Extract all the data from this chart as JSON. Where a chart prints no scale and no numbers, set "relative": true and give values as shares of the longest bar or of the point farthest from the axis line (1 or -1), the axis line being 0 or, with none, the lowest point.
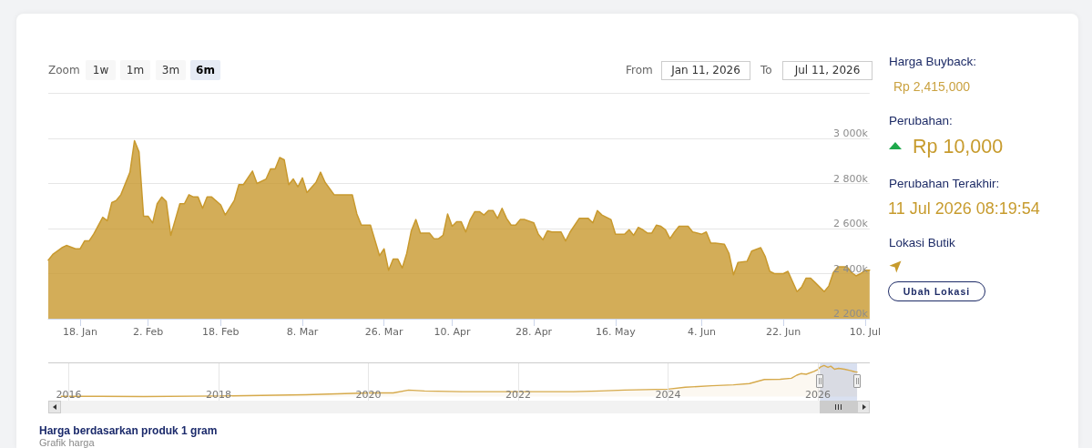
{
  "chart_data": [
    {
      "type": "area",
      "title": "Harga berdasarkan produk 1 gram",
      "subtitle": "Grafik harga",
      "color": "#c8992e",
      "x": [
        "2026-01-11",
        "2026-01-12",
        "2026-01-14",
        "2026-01-15",
        "2026-01-17",
        "2026-01-18",
        "2026-01-19",
        "2026-01-20",
        "2026-01-21",
        "2026-01-23",
        "2026-01-24",
        "2026-01-25",
        "2026-01-26",
        "2026-01-27",
        "2026-01-29",
        "2026-01-30",
        "2026-01-31",
        "2026-02-01",
        "2026-02-02",
        "2026-02-03",
        "2026-02-04",
        "2026-02-05",
        "2026-02-06",
        "2026-02-07",
        "2026-02-08",
        "2026-02-09",
        "2026-02-10",
        "2026-02-11",
        "2026-02-12",
        "2026-02-13",
        "2026-02-14",
        "2026-02-15",
        "2026-02-16",
        "2026-02-18",
        "2026-02-19",
        "2026-02-21",
        "2026-02-22",
        "2026-02-23",
        "2026-02-25",
        "2026-02-26",
        "2026-02-28",
        "2026-03-01",
        "2026-03-02",
        "2026-03-03",
        "2026-03-04",
        "2026-03-05",
        "2026-03-06",
        "2026-03-07",
        "2026-03-08",
        "2026-03-09",
        "2026-03-11",
        "2026-03-12",
        "2026-03-13",
        "2026-03-15",
        "2026-03-19",
        "2026-03-20",
        "2026-03-21",
        "2026-03-23",
        "2026-03-25",
        "2026-03-26",
        "2026-03-27",
        "2026-03-28",
        "2026-03-29",
        "2026-03-30",
        "2026-03-31",
        "2026-04-01",
        "2026-04-02",
        "2026-04-03",
        "2026-04-05",
        "2026-04-06",
        "2026-04-07",
        "2026-04-08",
        "2026-04-09",
        "2026-04-10",
        "2026-04-11",
        "2026-04-12",
        "2026-04-13",
        "2026-04-14",
        "2026-04-15",
        "2026-04-16",
        "2026-04-17",
        "2026-04-18",
        "2026-04-19",
        "2026-04-20",
        "2026-04-21",
        "2026-04-22",
        "2026-04-23",
        "2026-04-24",
        "2026-04-25",
        "2026-04-26",
        "2026-04-28",
        "2026-04-29",
        "2026-04-30",
        "2026-05-01",
        "2026-05-02",
        "2026-05-04",
        "2026-05-05",
        "2026-05-06",
        "2026-05-08",
        "2026-05-10",
        "2026-05-11",
        "2026-05-12",
        "2026-05-13",
        "2026-05-15",
        "2026-05-16",
        "2026-05-18",
        "2026-05-19",
        "2026-05-20",
        "2026-05-21",
        "2026-05-22",
        "2026-05-23",
        "2026-05-24",
        "2026-05-25",
        "2026-05-26",
        "2026-05-27",
        "2026-05-28",
        "2026-05-29",
        "2026-05-30",
        "2026-06-01",
        "2026-06-02",
        "2026-06-04",
        "2026-06-05",
        "2026-06-06",
        "2026-06-07",
        "2026-06-09",
        "2026-06-10",
        "2026-06-11",
        "2026-06-12",
        "2026-06-14",
        "2026-06-15",
        "2026-06-17",
        "2026-06-18",
        "2026-06-19",
        "2026-06-20",
        "2026-06-22",
        "2026-06-23",
        "2026-06-25",
        "2026-06-26",
        "2026-06-27",
        "2026-06-28",
        "2026-06-29",
        "2026-07-01",
        "2026-07-02",
        "2026-07-03",
        "2026-07-04",
        "2026-07-06",
        "2026-07-07",
        "2026-07-08",
        "2026-07-09",
        "2026-07-10",
        "2026-07-11"
      ],
      "values": [
        2460000,
        2485000,
        2515000,
        2525000,
        2510000,
        2510000,
        2545000,
        2545000,
        2575000,
        2650000,
        2635000,
        2715000,
        2725000,
        2750000,
        2850000,
        2990000,
        2940000,
        2655000,
        2655000,
        2625000,
        2710000,
        2740000,
        2720000,
        2570000,
        2640000,
        2710000,
        2710000,
        2750000,
        2740000,
        2740000,
        2690000,
        2740000,
        2740000,
        2705000,
        2660000,
        2725000,
        2795000,
        2795000,
        2855000,
        2800000,
        2820000,
        2865000,
        2865000,
        2915000,
        2905000,
        2795000,
        2820000,
        2785000,
        2825000,
        2760000,
        2805000,
        2850000,
        2805000,
        2750000,
        2750000,
        2665000,
        2615000,
        2615000,
        2480000,
        2510000,
        2415000,
        2465000,
        2465000,
        2425000,
        2490000,
        2590000,
        2640000,
        2580000,
        2580000,
        2555000,
        2555000,
        2570000,
        2665000,
        2610000,
        2630000,
        2630000,
        2585000,
        2640000,
        2675000,
        2675000,
        2660000,
        2680000,
        2680000,
        2645000,
        2690000,
        2645000,
        2615000,
        2615000,
        2640000,
        2640000,
        2625000,
        2575000,
        2550000,
        2590000,
        2585000,
        2585000,
        2545000,
        2585000,
        2645000,
        2645000,
        2625000,
        2680000,
        2660000,
        2640000,
        2575000,
        2575000,
        2595000,
        2570000,
        2605000,
        2595000,
        2580000,
        2580000,
        2615000,
        2610000,
        2595000,
        2555000,
        2585000,
        2610000,
        2610000,
        2585000,
        2575000,
        2585000,
        2535000,
        2535000,
        2530000,
        2490000,
        2395000,
        2450000,
        2455000,
        2500000,
        2515000,
        2475000,
        2410000,
        2400000,
        2400000,
        2410000,
        2320000,
        2340000,
        2380000,
        2380000,
        2360000,
        2320000,
        2345000,
        2405000,
        2430000,
        2430000,
        2405000,
        2390000,
        2400000,
        2415000,
        2415000
      ],
      "xlim": [
        "2026-01-11",
        "2026-07-11"
      ],
      "xticks": [
        {
          "value": "2026-01-18",
          "label": "18. Jan"
        },
        {
          "value": "2026-02-02",
          "label": "2. Feb"
        },
        {
          "value": "2026-02-18",
          "label": "18. Feb"
        },
        {
          "value": "2026-03-08",
          "label": "8. Mar"
        },
        {
          "value": "2026-03-26",
          "label": "26. Mar"
        },
        {
          "value": "2026-04-10",
          "label": "10. Apr"
        },
        {
          "value": "2026-04-28",
          "label": "28. Apr"
        },
        {
          "value": "2026-05-16",
          "label": "16. May"
        },
        {
          "value": "2026-06-04",
          "label": "4. Jun"
        },
        {
          "value": "2026-06-22",
          "label": "22. Jun"
        },
        {
          "value": "2026-07-10",
          "label": "10. Jul"
        }
      ],
      "ylim": [
        2200000,
        3200000
      ],
      "yticks": [
        {
          "value": 2200000,
          "label": "2 200k"
        },
        {
          "value": 2400000,
          "label": "2 400k"
        },
        {
          "value": 2600000,
          "label": "2 600k"
        },
        {
          "value": 2800000,
          "label": "2 800k"
        },
        {
          "value": 3000000,
          "label": "3 000k"
        },
        {
          "value": 3200000,
          "label": null
        }
      ],
      "grid": "y",
      "annotations": [
        "Zoom",
        "1w",
        "1m",
        "3m",
        "6m",
        "From",
        "Jan 11, 2026",
        "To",
        "Jul 11, 2026"
      ]
    },
    {
      "type": "area",
      "relative": true,
      "color": "#d6aa4c",
      "x": [
        "2015-11-25",
        "2016-06-01",
        "2017-01-01",
        "2018-01-01",
        "2019-03-01",
        "2019-08-01",
        "2020-01-01",
        "2020-05-01",
        "2020-07-15",
        "2020-10-01",
        "2021-04-01",
        "2022-01-01",
        "2022-09-25",
        "2023-02-01",
        "2023-06-01",
        "2024-01-01",
        "2024-03-25",
        "2024-08-01",
        "2024-11-15",
        "2025-02-01",
        "2025-04-15",
        "2025-07-01",
        "2025-08-25",
        "2025-09-20",
        "2025-10-10",
        "2025-11-05",
        "2025-12-13",
        "2026-01-02",
        "2026-01-13",
        "2026-01-31",
        "2026-02-19",
        "2026-03-05",
        "2026-03-23",
        "2026-04-12",
        "2026-05-11",
        "2026-06-07",
        "2026-06-29",
        "2026-07-11"
      ],
      "values": [
        0.01,
        0.01,
        0,
        0.02,
        0.06,
        0.09,
        0.12,
        0.12,
        0.21,
        0.18,
        0.16,
        0.16,
        0.16,
        0.18,
        0.21,
        0.24,
        0.3,
        0.35,
        0.38,
        0.42,
        0.55,
        0.56,
        0.59,
        0.69,
        0.74,
        0.72,
        0.81,
        0.88,
        0.95,
        1,
        0.94,
        0.98,
        0.88,
        0.91,
        0.88,
        0.84,
        0.8,
        0.79
      ],
      "xlim": [
        "2015-09-23",
        "2026-09-11"
      ],
      "xticks": [
        {
          "value": "2016",
          "label": "2016"
        },
        {
          "value": "2018",
          "label": "2018"
        },
        {
          "value": "2020",
          "label": "2020"
        },
        {
          "value": "2022",
          "label": "2022"
        },
        {
          "value": "2024",
          "label": "2024"
        },
        {
          "value": "2026",
          "label": "2026"
        }
      ],
      "grid": "x",
      "bands": [
        {
          "axis": "x",
          "from": "2026-01-11",
          "to": "2026-07-11",
          "color": "#ccd6eb"
        }
      ]
    },
    {
      "type": "other",
      "annotations": [
        "Harga Buyback:",
        "Rp 2,415,000",
        "Perubahan:",
        "Rp 10,000",
        "Perubahan Terakhir:",
        "11 Jul 2026 08:19:54",
        "Lokasi Butik",
        "Ubah Lokasi"
      ]
    }
  ]
}
